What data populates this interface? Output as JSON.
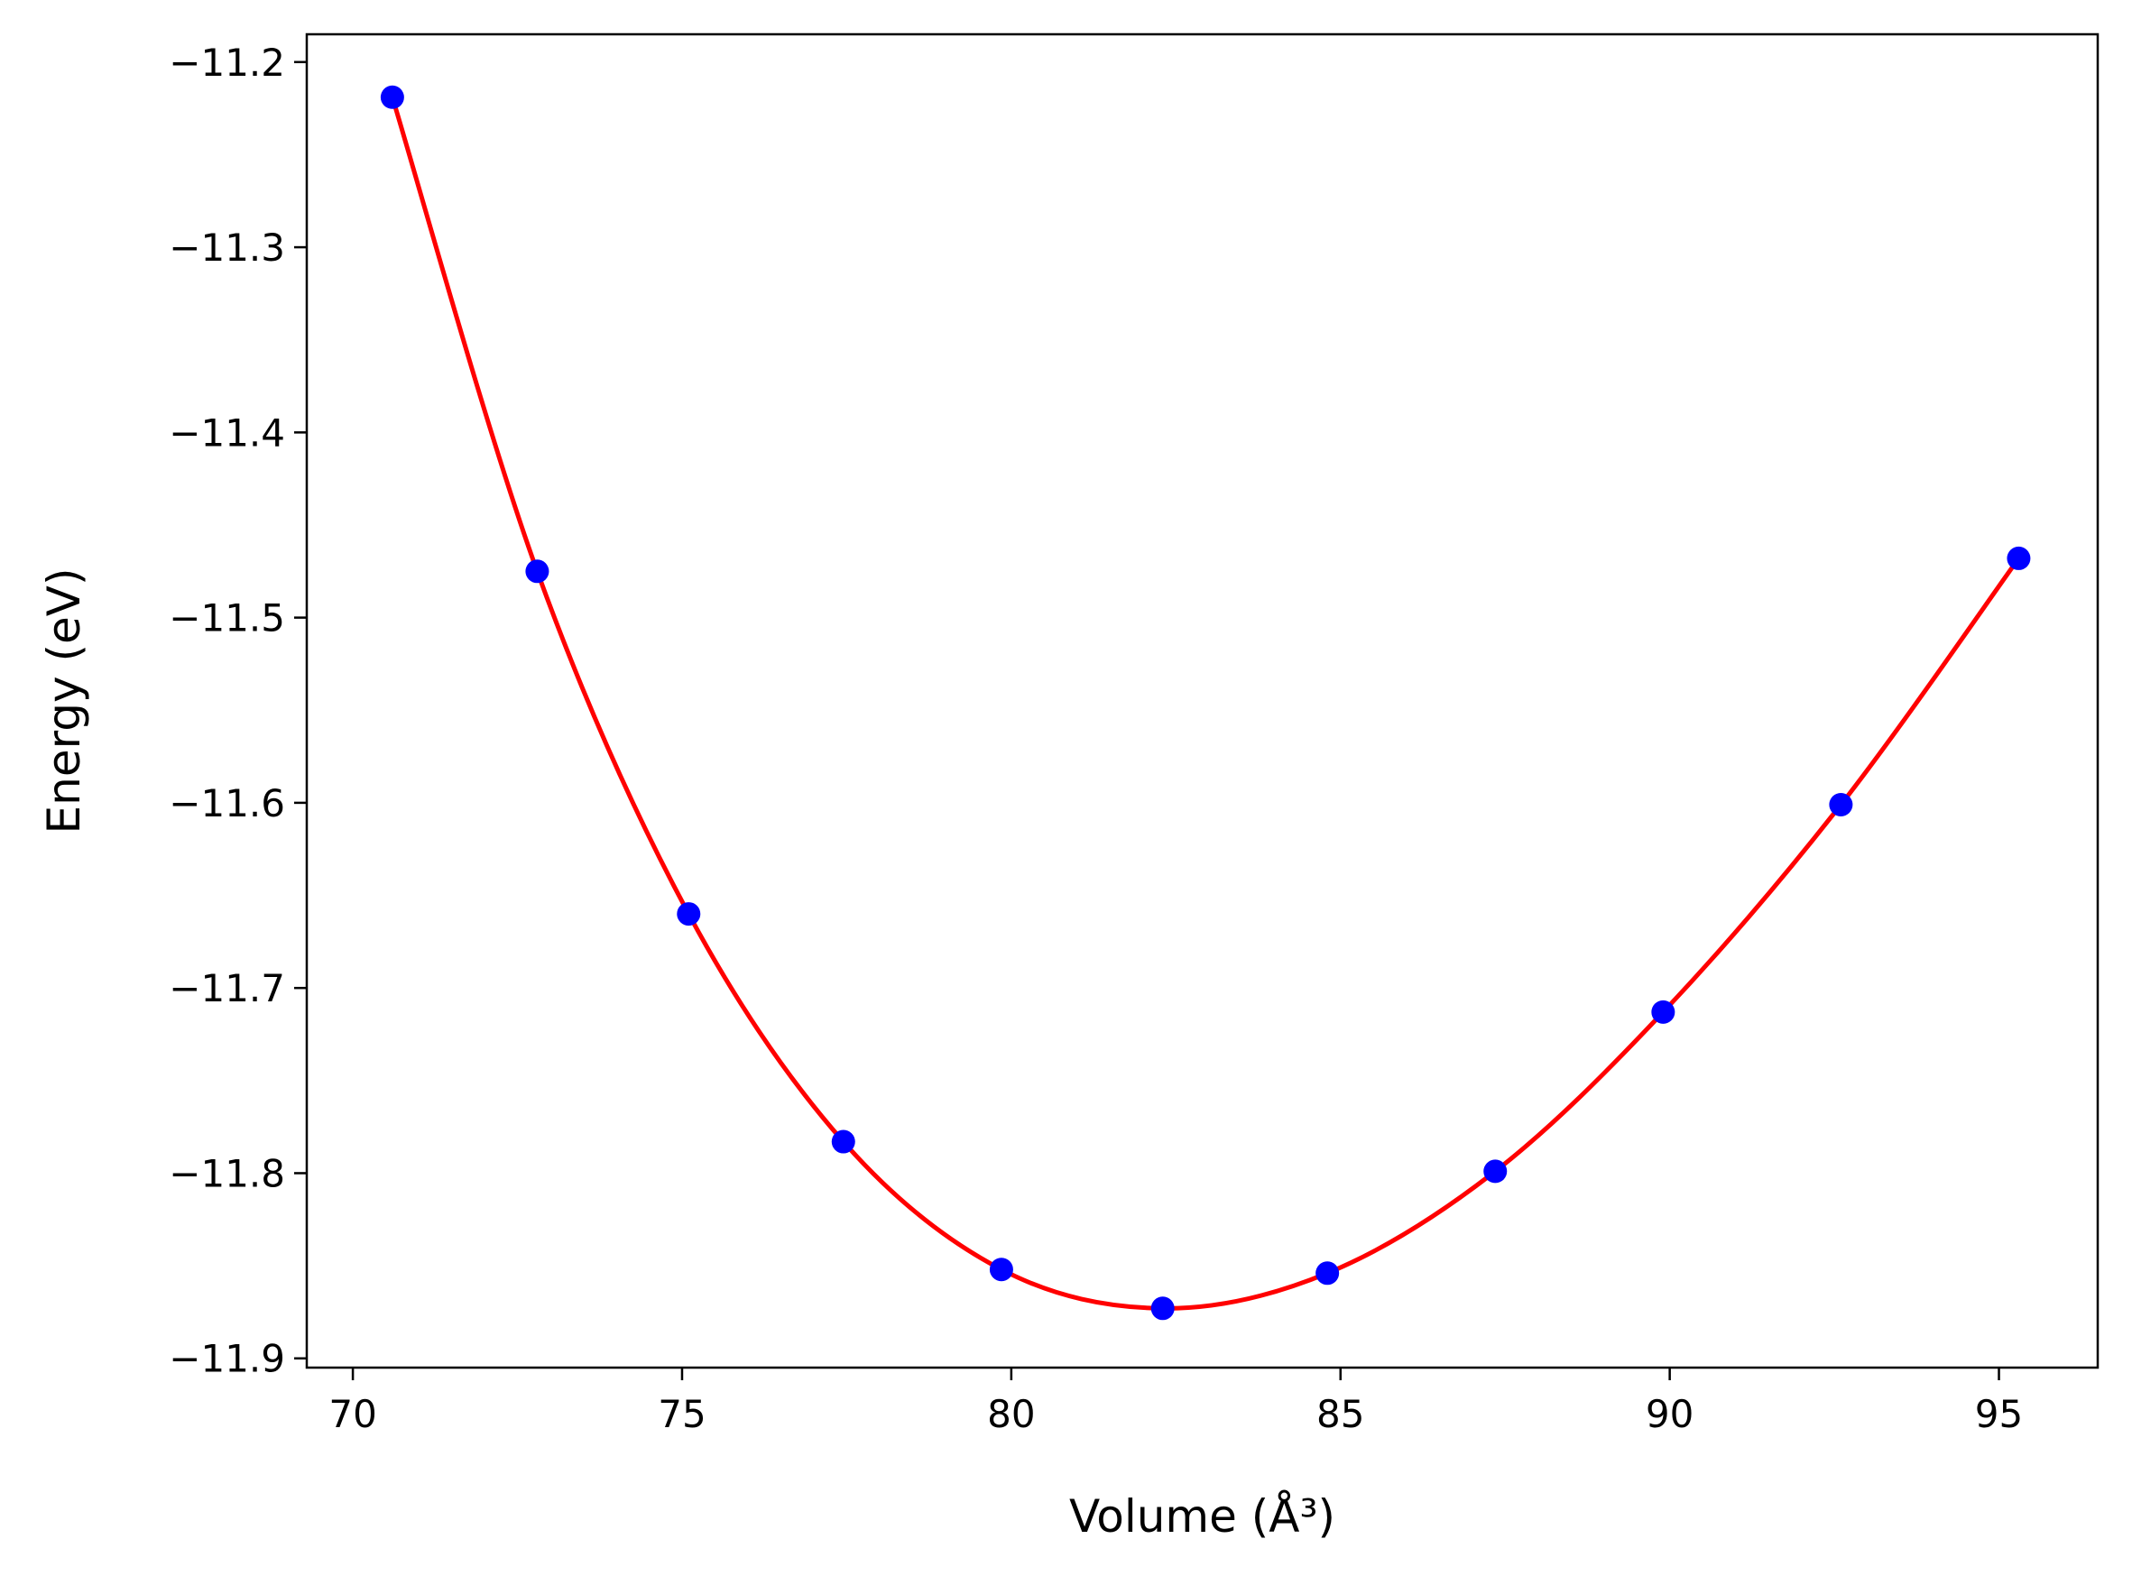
{
  "chart_data": {
    "type": "scatter",
    "title": "",
    "xlabel": "Volume (Å³)",
    "ylabel": "Energy (eV)",
    "xlim": [
      69.3,
      96.5
    ],
    "ylim": [
      -11.905,
      -11.185
    ],
    "grid": false,
    "legend": "none",
    "x_ticks": [
      70,
      75,
      80,
      85,
      90,
      95
    ],
    "x_tick_labels": [
      "70",
      "75",
      "80",
      "85",
      "90",
      "95"
    ],
    "y_ticks": [
      -11.2,
      -11.3,
      -11.4,
      -11.5,
      -11.6,
      -11.7,
      -11.8,
      -11.9
    ],
    "y_tick_labels": [
      "−11.2",
      "−11.3",
      "−11.4",
      "−11.5",
      "−11.6",
      "−11.7",
      "−11.8",
      "−11.9"
    ],
    "series": [
      {
        "kind": "points",
        "color": "#0000ff",
        "x": [
          70.6,
          72.8,
          75.1,
          77.45,
          79.85,
          82.3,
          84.8,
          87.35,
          89.9,
          92.6,
          95.3
        ],
        "y": [
          -11.219,
          -11.475,
          -11.66,
          -11.783,
          -11.852,
          -11.873,
          -11.854,
          -11.799,
          -11.713,
          -11.601,
          -11.468
        ]
      },
      {
        "kind": "fit-curve",
        "color": "#ff0000",
        "x": [
          70.6,
          72.8,
          75.1,
          77.45,
          79.85,
          82.3,
          84.8,
          87.35,
          89.9,
          92.6,
          95.3
        ],
        "y": [
          -11.219,
          -11.475,
          -11.66,
          -11.783,
          -11.852,
          -11.873,
          -11.854,
          -11.799,
          -11.713,
          -11.601,
          -11.468
        ]
      }
    ]
  }
}
